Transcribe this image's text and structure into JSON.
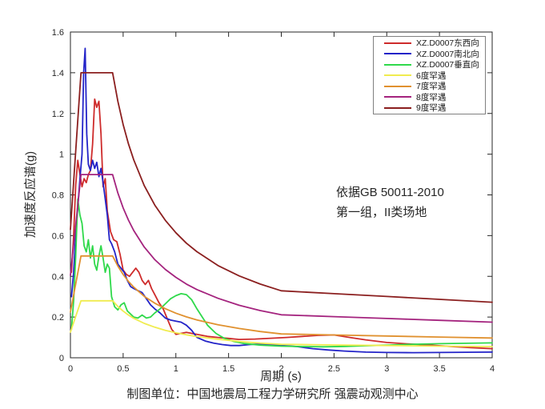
{
  "figure": {
    "caption": "制图单位：中国地震局工程力学研究所 强震动观测中心"
  },
  "chart_data": {
    "type": "line",
    "title": "",
    "xlabel": "周期 (s)",
    "ylabel": "加速度反应谱(g)",
    "xlim": [
      0,
      4
    ],
    "ylim": [
      0,
      1.6
    ],
    "xticks": [
      0,
      0.5,
      1,
      1.5,
      2,
      2.5,
      3,
      3.5,
      4
    ],
    "xtick_labels": [
      "0",
      "0.5",
      "1",
      "1.5",
      "2",
      "2.5",
      "3",
      "3.5",
      "4"
    ],
    "yticks": [
      0,
      0.2,
      0.4,
      0.6,
      0.8,
      1,
      1.2,
      1.4,
      1.6
    ],
    "ytick_labels": [
      "0",
      "0.2",
      "0.4",
      "0.6",
      "0.8",
      "1",
      "1.2",
      "1.4",
      "1.6"
    ],
    "grid": false,
    "legend_position": "top-right",
    "annotation": "依据GB 50011-2010\n第一组，II类场地",
    "axis_color": "#262626",
    "series": [
      {
        "id": "ew",
        "name": "XZ.D0007东西向",
        "color": "#CE2B2B",
        "x": [
          0.01,
          0.03,
          0.05,
          0.07,
          0.09,
          0.11,
          0.13,
          0.15,
          0.17,
          0.19,
          0.21,
          0.23,
          0.25,
          0.27,
          0.29,
          0.31,
          0.33,
          0.35,
          0.38,
          0.41,
          0.44,
          0.47,
          0.5,
          0.53,
          0.56,
          0.59,
          0.62,
          0.65,
          0.68,
          0.71,
          0.74,
          0.77,
          0.8,
          0.84,
          0.88,
          0.92,
          0.96,
          1.0,
          1.05,
          1.1,
          1.15,
          1.2,
          1.3,
          1.4,
          1.5,
          1.6,
          1.75,
          1.9,
          2.05,
          2.2,
          2.35,
          2.5,
          2.65,
          2.8,
          3.0,
          3.2,
          3.4,
          3.6,
          3.8,
          4.0
        ],
        "y": [
          0.42,
          0.6,
          0.85,
          0.97,
          0.9,
          0.84,
          0.88,
          0.86,
          0.9,
          0.92,
          1.05,
          1.27,
          1.23,
          1.26,
          1.1,
          0.84,
          0.88,
          0.72,
          0.62,
          0.58,
          0.57,
          0.51,
          0.43,
          0.41,
          0.4,
          0.42,
          0.44,
          0.42,
          0.38,
          0.36,
          0.38,
          0.34,
          0.31,
          0.27,
          0.24,
          0.19,
          0.14,
          0.115,
          0.12,
          0.125,
          0.12,
          0.115,
          0.105,
          0.1,
          0.095,
          0.09,
          0.092,
          0.096,
          0.1,
          0.105,
          0.11,
          0.112,
          0.1,
          0.088,
          0.075,
          0.068,
          0.062,
          0.056,
          0.05,
          0.045
        ]
      },
      {
        "id": "ns",
        "name": "XZ.D0007南北向",
        "color": "#2323C8",
        "x": [
          0.01,
          0.03,
          0.05,
          0.07,
          0.09,
          0.11,
          0.125,
          0.14,
          0.155,
          0.17,
          0.19,
          0.21,
          0.23,
          0.25,
          0.27,
          0.29,
          0.31,
          0.33,
          0.35,
          0.37,
          0.39,
          0.42,
          0.45,
          0.48,
          0.51,
          0.54,
          0.57,
          0.6,
          0.64,
          0.68,
          0.72,
          0.76,
          0.8,
          0.85,
          0.9,
          0.95,
          1.0,
          1.05,
          1.1,
          1.15,
          1.2,
          1.28,
          1.36,
          1.44,
          1.52,
          1.6,
          1.7,
          1.8,
          1.9,
          2.0,
          2.15,
          2.3,
          2.45,
          2.6,
          2.8,
          3.0,
          3.25,
          3.5,
          3.75,
          4.0
        ],
        "y": [
          0.3,
          0.42,
          0.6,
          0.74,
          0.88,
          1.0,
          1.4,
          1.52,
          1.1,
          0.95,
          0.92,
          0.97,
          0.93,
          0.96,
          0.89,
          0.93,
          0.86,
          0.78,
          0.7,
          0.58,
          0.56,
          0.52,
          0.46,
          0.44,
          0.42,
          0.38,
          0.35,
          0.34,
          0.33,
          0.32,
          0.29,
          0.26,
          0.24,
          0.22,
          0.195,
          0.185,
          0.18,
          0.175,
          0.16,
          0.135,
          0.1,
          0.082,
          0.072,
          0.065,
          0.06,
          0.06,
          0.065,
          0.068,
          0.065,
          0.06,
          0.055,
          0.045,
          0.038,
          0.033,
          0.028,
          0.026,
          0.025,
          0.026,
          0.027,
          0.028
        ]
      },
      {
        "id": "ud",
        "name": "XZ.D0007垂直向",
        "color": "#2FD94B",
        "x": [
          0.01,
          0.03,
          0.05,
          0.07,
          0.09,
          0.11,
          0.13,
          0.15,
          0.17,
          0.19,
          0.21,
          0.23,
          0.25,
          0.27,
          0.29,
          0.31,
          0.33,
          0.35,
          0.37,
          0.39,
          0.42,
          0.45,
          0.48,
          0.51,
          0.54,
          0.57,
          0.6,
          0.64,
          0.68,
          0.72,
          0.76,
          0.8,
          0.85,
          0.9,
          0.95,
          1.0,
          1.05,
          1.1,
          1.15,
          1.2,
          1.25,
          1.3,
          1.38,
          1.46,
          1.55,
          1.65,
          1.8,
          2.0,
          2.2,
          2.4,
          2.6,
          2.8,
          3.0,
          3.25,
          3.5,
          3.75,
          4.0
        ],
        "y": [
          0.14,
          0.28,
          0.5,
          0.78,
          0.7,
          0.66,
          0.55,
          0.52,
          0.58,
          0.49,
          0.55,
          0.46,
          0.43,
          0.5,
          0.55,
          0.49,
          0.42,
          0.46,
          0.44,
          0.3,
          0.25,
          0.235,
          0.26,
          0.27,
          0.23,
          0.215,
          0.2,
          0.195,
          0.21,
          0.195,
          0.2,
          0.22,
          0.24,
          0.265,
          0.29,
          0.305,
          0.315,
          0.31,
          0.285,
          0.24,
          0.2,
          0.16,
          0.12,
          0.095,
          0.08,
          0.07,
          0.062,
          0.057,
          0.055,
          0.054,
          0.056,
          0.059,
          0.062,
          0.066,
          0.069,
          0.071,
          0.073
        ]
      },
      {
        "id": "rare6",
        "name": "6度罕遇",
        "color": "#F0EC4F",
        "x": [
          0,
          0.1,
          0.4,
          0.45,
          0.5,
          0.55,
          0.6,
          0.7,
          0.8,
          0.9,
          1.0,
          1.1,
          1.2,
          1.4,
          1.6,
          1.8,
          2.0,
          2.5,
          3.0,
          3.5,
          4.0
        ],
        "y": [
          0.126,
          0.28,
          0.28,
          0.252,
          0.229,
          0.21,
          0.194,
          0.169,
          0.15,
          0.135,
          0.123,
          0.113,
          0.104,
          0.091,
          0.08,
          0.072,
          0.066,
          0.063,
          0.06,
          0.057,
          0.055
        ]
      },
      {
        "id": "rare7",
        "name": "7度罕遇",
        "color": "#E0912F",
        "x": [
          0,
          0.1,
          0.4,
          0.45,
          0.5,
          0.55,
          0.6,
          0.7,
          0.8,
          0.9,
          1.0,
          1.1,
          1.2,
          1.4,
          1.6,
          1.8,
          2.0,
          2.5,
          3.0,
          3.5,
          4.0
        ],
        "y": [
          0.225,
          0.5,
          0.5,
          0.45,
          0.409,
          0.375,
          0.347,
          0.302,
          0.268,
          0.241,
          0.219,
          0.201,
          0.186,
          0.162,
          0.144,
          0.129,
          0.117,
          0.112,
          0.107,
          0.102,
          0.097
        ]
      },
      {
        "id": "rare8",
        "name": "8度罕遇",
        "color": "#A4237E",
        "x": [
          0,
          0.1,
          0.4,
          0.45,
          0.5,
          0.55,
          0.6,
          0.7,
          0.8,
          0.9,
          1.0,
          1.1,
          1.2,
          1.4,
          1.6,
          1.8,
          2.0,
          2.5,
          3.0,
          3.5,
          4.0
        ],
        "y": [
          0.405,
          0.9,
          0.9,
          0.809,
          0.736,
          0.676,
          0.625,
          0.544,
          0.482,
          0.434,
          0.395,
          0.362,
          0.335,
          0.292,
          0.258,
          0.232,
          0.211,
          0.202,
          0.193,
          0.184,
          0.175
        ]
      },
      {
        "id": "rare9",
        "name": "9度罕遇",
        "color": "#8B1F1F",
        "x": [
          0,
          0.1,
          0.4,
          0.45,
          0.5,
          0.55,
          0.6,
          0.7,
          0.8,
          0.9,
          1.0,
          1.1,
          1.2,
          1.4,
          1.6,
          1.8,
          2.0,
          2.5,
          3.0,
          3.5,
          4.0
        ],
        "y": [
          0.63,
          1.4,
          1.4,
          1.259,
          1.145,
          1.051,
          0.972,
          0.846,
          0.75,
          0.675,
          0.614,
          0.563,
          0.521,
          0.453,
          0.402,
          0.362,
          0.329,
          0.315,
          0.301,
          0.287,
          0.273
        ]
      }
    ]
  }
}
